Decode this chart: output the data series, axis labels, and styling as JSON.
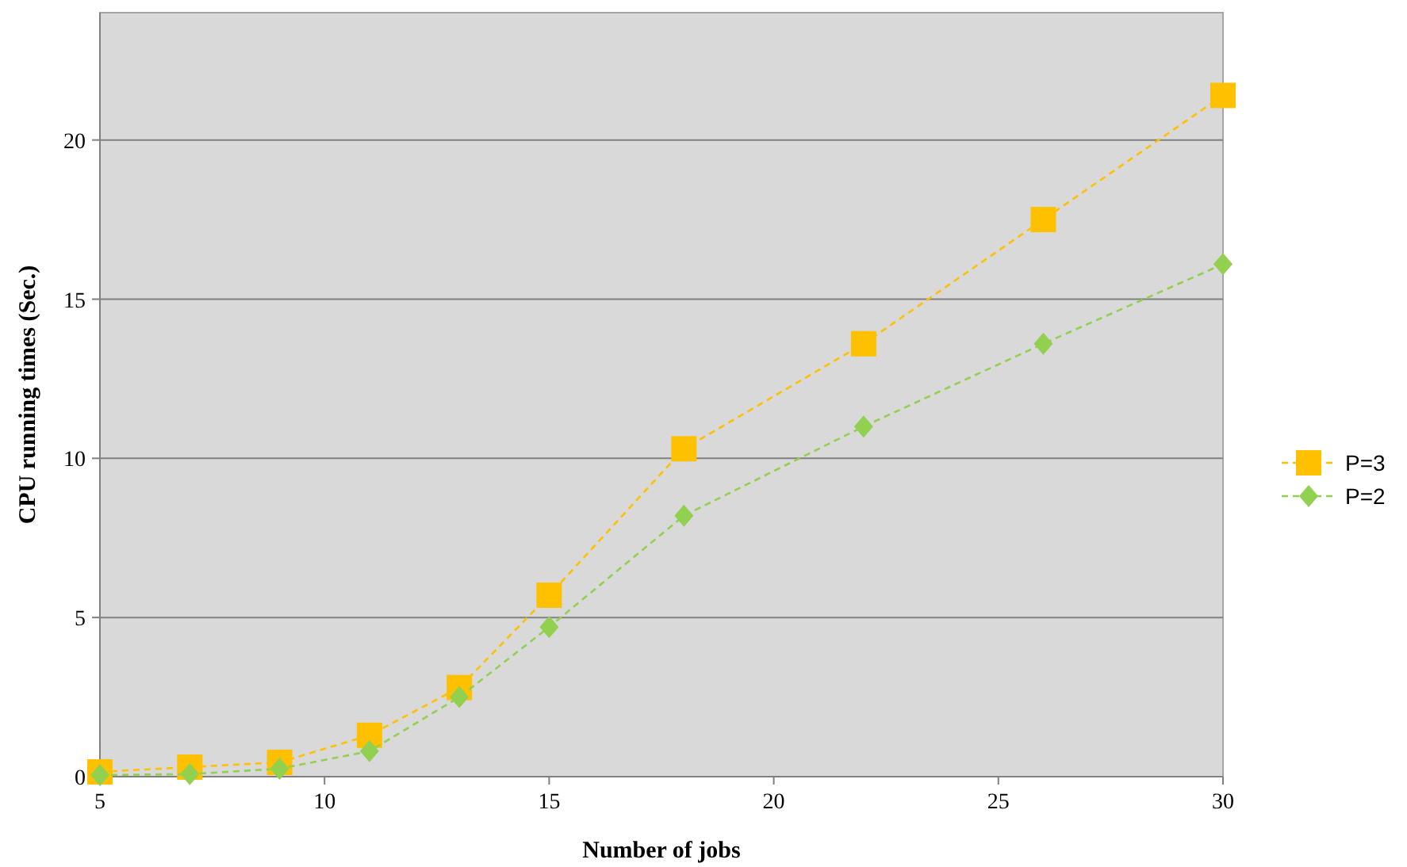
{
  "chart_data": {
    "type": "line",
    "xlabel": "Number of jobs",
    "ylabel": "CPU running times (Sec.)",
    "x": [
      5,
      7,
      9,
      11,
      13,
      15,
      18,
      22,
      26,
      30
    ],
    "xlim": [
      5,
      30
    ],
    "xticks": [
      5,
      10,
      15,
      20,
      25,
      30
    ],
    "ylim": [
      0,
      24
    ],
    "yticks": [
      0,
      5,
      10,
      15,
      20
    ],
    "grid": "y",
    "legend": "right",
    "line_style": "dashed",
    "series": [
      {
        "name": "P=3",
        "color": "#ffc000",
        "marker": "square",
        "values": [
          0.15,
          0.3,
          0.45,
          1.3,
          2.8,
          5.7,
          10.3,
          13.6,
          17.5,
          21.4
        ]
      },
      {
        "name": "P=2",
        "color": "#92d050",
        "marker": "diamond",
        "values": [
          0.05,
          0.08,
          0.25,
          0.8,
          2.5,
          4.7,
          8.2,
          11.0,
          13.6,
          16.1
        ]
      }
    ]
  }
}
